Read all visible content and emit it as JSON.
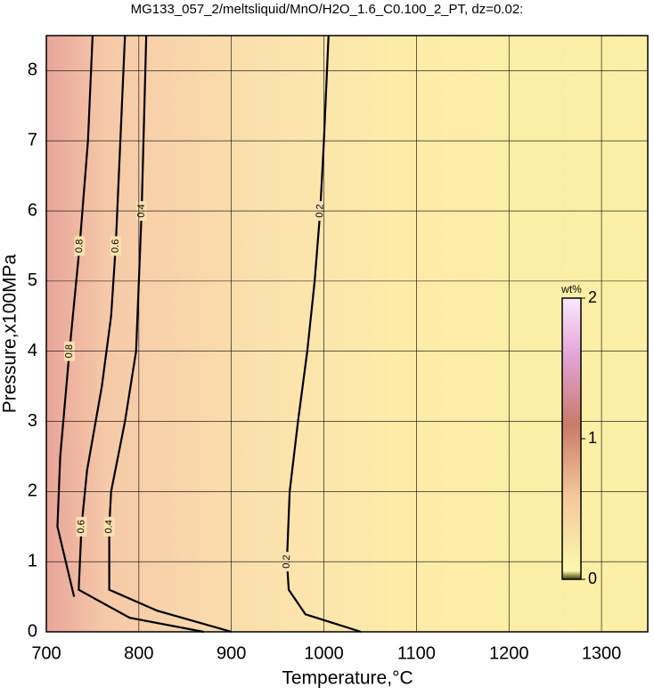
{
  "chart_data": {
    "type": "contour",
    "title": "MG133_057_2/meltsliquid/MnO/H2O_1.6_C0.100_2_PT, dz=0.02:",
    "x_label": "Temperature,°C",
    "y_label": "Pressure,x100MPa",
    "xlim": [
      700,
      1350
    ],
    "ylim": [
      0,
      8.5
    ],
    "xticks": [
      700,
      800,
      900,
      1000,
      1100,
      1200,
      1300
    ],
    "yticks": [
      0,
      1,
      2,
      3,
      4,
      5,
      6,
      7,
      8
    ],
    "grid": true,
    "colorbar": {
      "label": "wt%",
      "lim": [
        0,
        2
      ],
      "ticks": [
        0,
        1,
        2
      ]
    },
    "series": [
      {
        "name": "0.2",
        "color": "#000000",
        "x": [
          1040,
          980,
          962,
          960,
          963,
          972,
          982,
          990,
          996,
          1000,
          1005
        ],
        "y": [
          0,
          0.25,
          0.6,
          1,
          2,
          3,
          4,
          5,
          6,
          7,
          8.5
        ]
      },
      {
        "name": "0.4",
        "color": "#000000",
        "x": [
          900,
          820,
          768,
          768,
          770,
          785,
          797,
          800,
          803,
          805,
          808
        ],
        "y": [
          0,
          0.3,
          0.6,
          1.5,
          2,
          3,
          4,
          5,
          6,
          7,
          8.5
        ]
      },
      {
        "name": "0.6",
        "color": "#000000",
        "x": [
          870,
          790,
          735,
          738,
          744,
          760,
          770,
          775,
          780,
          785
        ],
        "y": [
          0,
          0.2,
          0.6,
          1.5,
          2.3,
          3.5,
          4.5,
          5.5,
          7,
          8.5
        ]
      },
      {
        "name": "0.8",
        "color": "#000000",
        "x": [
          730,
          712,
          715,
          725,
          736,
          745,
          750
        ],
        "y": [
          0.5,
          1.5,
          2.5,
          4,
          5.5,
          7,
          8.5
        ]
      }
    ]
  }
}
